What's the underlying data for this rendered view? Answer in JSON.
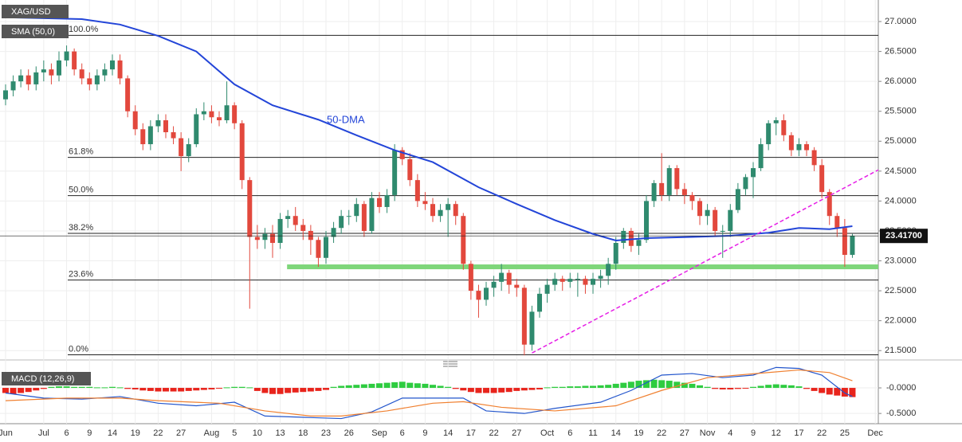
{
  "chart_data": [
    {
      "type": "candlestick",
      "title": "XAG/USD",
      "xlim": [
        -0.73,
        114.4
      ],
      "ylim": [
        21.37,
        27.36
      ],
      "xticks": [
        {
          "value": 0,
          "label": "Jun"
        },
        {
          "value": 5,
          "label": "Jul"
        },
        {
          "value": 8,
          "label": "6"
        },
        {
          "value": 11,
          "label": "9"
        },
        {
          "value": 14,
          "label": "14"
        },
        {
          "value": 17,
          "label": "19"
        },
        {
          "value": 20,
          "label": "22"
        },
        {
          "value": 23,
          "label": "27"
        },
        {
          "value": 27,
          "label": "Aug"
        },
        {
          "value": 30,
          "label": "5"
        },
        {
          "value": 33,
          "label": "10"
        },
        {
          "value": 36,
          "label": "13"
        },
        {
          "value": 39,
          "label": "18"
        },
        {
          "value": 42,
          "label": "23"
        },
        {
          "value": 45,
          "label": "26"
        },
        {
          "value": 49,
          "label": "Sep"
        },
        {
          "value": 52,
          "label": "6"
        },
        {
          "value": 55,
          "label": "9"
        },
        {
          "value": 58,
          "label": "14"
        },
        {
          "value": 61,
          "label": "17"
        },
        {
          "value": 64,
          "label": "22"
        },
        {
          "value": 67,
          "label": "27"
        },
        {
          "value": 71,
          "label": "Oct"
        },
        {
          "value": 74,
          "label": "6"
        },
        {
          "value": 77,
          "label": "11"
        },
        {
          "value": 80,
          "label": "14"
        },
        {
          "value": 83,
          "label": "19"
        },
        {
          "value": 86,
          "label": "22"
        },
        {
          "value": 89,
          "label": "27"
        },
        {
          "value": 92,
          "label": "Nov"
        },
        {
          "value": 95,
          "label": "4"
        },
        {
          "value": 98,
          "label": "9"
        },
        {
          "value": 101,
          "label": "12"
        },
        {
          "value": 104,
          "label": "17"
        },
        {
          "value": 107,
          "label": "22"
        },
        {
          "value": 110,
          "label": "25"
        },
        {
          "value": 114,
          "label": "Dec"
        }
      ],
      "yticks": [
        {
          "value": 27,
          "label": "27.0000"
        },
        {
          "value": 26.5,
          "label": "26.5000"
        },
        {
          "value": 26,
          "label": "26.0000"
        },
        {
          "value": 25.5,
          "label": "25.5000"
        },
        {
          "value": 25,
          "label": "25.0000"
        },
        {
          "value": 24.5,
          "label": "24.5000"
        },
        {
          "value": 24,
          "label": "24.0000"
        },
        {
          "value": 23.5,
          "label": "23.5000"
        },
        {
          "value": 23,
          "label": "23.0000"
        },
        {
          "value": 22.5,
          "label": "22.5000"
        },
        {
          "value": 22,
          "label": "22.0000"
        },
        {
          "value": 21.5,
          "label": "21.5000"
        }
      ],
      "up_color": "#2f8a6e",
      "down_color": "#e2483d",
      "candles": [
        [
          25.7,
          25.95,
          25.6,
          25.85
        ],
        [
          25.85,
          26.1,
          25.75,
          26.0
        ],
        [
          26.0,
          26.2,
          25.9,
          26.1
        ],
        [
          26.1,
          26.2,
          25.85,
          25.95
        ],
        [
          25.95,
          26.25,
          25.85,
          26.15
        ],
        [
          26.15,
          26.35,
          26.0,
          26.2
        ],
        [
          26.2,
          26.3,
          25.95,
          26.1
        ],
        [
          26.1,
          26.5,
          26.0,
          26.35
        ],
        [
          26.35,
          26.6,
          26.25,
          26.5
        ],
        [
          26.5,
          26.55,
          26.1,
          26.2
        ],
        [
          26.2,
          26.3,
          25.95,
          26.05
        ],
        [
          26.05,
          26.15,
          25.85,
          25.95
        ],
        [
          25.95,
          26.2,
          25.85,
          26.1
        ],
        [
          26.1,
          26.3,
          26.0,
          26.2
        ],
        [
          26.2,
          26.45,
          26.1,
          26.35
        ],
        [
          26.35,
          26.45,
          25.95,
          26.05
        ],
        [
          26.05,
          26.1,
          25.4,
          25.5
        ],
        [
          25.5,
          25.6,
          25.1,
          25.2
        ],
        [
          25.2,
          25.3,
          24.85,
          24.95
        ],
        [
          24.95,
          25.35,
          24.85,
          25.25
        ],
        [
          25.25,
          25.45,
          25.15,
          25.35
        ],
        [
          25.35,
          25.45,
          25.05,
          25.15
        ],
        [
          25.15,
          25.25,
          24.95,
          25.05
        ],
        [
          25.05,
          25.15,
          24.5,
          24.75
        ],
        [
          24.75,
          25.05,
          24.65,
          24.95
        ],
        [
          24.95,
          25.55,
          24.9,
          25.45
        ],
        [
          25.45,
          25.65,
          25.35,
          25.5
        ],
        [
          25.5,
          25.6,
          25.3,
          25.4
        ],
        [
          25.4,
          25.5,
          25.25,
          25.35
        ],
        [
          25.35,
          26.0,
          25.3,
          25.6
        ],
        [
          25.6,
          25.65,
          25.2,
          25.3
        ],
        [
          25.3,
          25.35,
          24.2,
          24.35
        ],
        [
          24.35,
          24.4,
          22.2,
          23.4
        ],
        [
          23.4,
          23.6,
          23.2,
          23.35
        ],
        [
          23.35,
          23.55,
          23.2,
          23.45
        ],
        [
          23.45,
          23.6,
          23.05,
          23.3
        ],
        [
          23.3,
          23.8,
          23.2,
          23.7
        ],
        [
          23.7,
          23.85,
          23.55,
          23.75
        ],
        [
          23.75,
          23.9,
          23.5,
          23.6
        ],
        [
          23.6,
          23.7,
          23.35,
          23.5
        ],
        [
          23.5,
          23.6,
          23.1,
          23.35
        ],
        [
          23.35,
          23.4,
          22.9,
          23.05
        ],
        [
          23.05,
          23.5,
          22.95,
          23.4
        ],
        [
          23.4,
          23.65,
          23.3,
          23.55
        ],
        [
          23.55,
          23.85,
          23.45,
          23.75
        ],
        [
          23.75,
          23.85,
          23.6,
          23.75
        ],
        [
          23.75,
          24.05,
          23.65,
          23.95
        ],
        [
          23.95,
          24.0,
          23.4,
          23.5
        ],
        [
          23.5,
          24.15,
          23.45,
          24.05
        ],
        [
          24.05,
          24.15,
          23.8,
          23.9
        ],
        [
          23.9,
          24.2,
          23.8,
          24.1
        ],
        [
          24.1,
          24.95,
          24.0,
          24.85
        ],
        [
          24.85,
          24.9,
          24.6,
          24.7
        ],
        [
          24.7,
          24.8,
          24.25,
          24.35
        ],
        [
          24.35,
          24.45,
          23.9,
          24.0
        ],
        [
          24.0,
          24.15,
          23.85,
          23.95
        ],
        [
          23.95,
          24.05,
          23.65,
          23.75
        ],
        [
          23.75,
          23.95,
          23.65,
          23.85
        ],
        [
          23.85,
          24.05,
          23.4,
          23.95
        ],
        [
          23.95,
          24.0,
          23.6,
          23.75
        ],
        [
          23.75,
          23.8,
          22.85,
          22.95
        ],
        [
          22.95,
          23.0,
          22.35,
          22.5
        ],
        [
          22.5,
          22.6,
          22.05,
          22.35
        ],
        [
          22.35,
          22.65,
          22.25,
          22.55
        ],
        [
          22.55,
          22.75,
          22.4,
          22.65
        ],
        [
          22.65,
          22.95,
          22.5,
          22.8
        ],
        [
          22.8,
          22.85,
          22.45,
          22.6
        ],
        [
          22.6,
          22.7,
          22.4,
          22.55
        ],
        [
          22.55,
          22.6,
          21.42,
          21.6
        ],
        [
          21.6,
          22.25,
          21.5,
          22.15
        ],
        [
          22.15,
          22.55,
          22.05,
          22.45
        ],
        [
          22.45,
          22.7,
          22.3,
          22.6
        ],
        [
          22.6,
          22.8,
          22.5,
          22.7
        ],
        [
          22.7,
          22.75,
          22.5,
          22.65
        ],
        [
          22.65,
          22.8,
          22.55,
          22.7
        ],
        [
          22.7,
          22.8,
          22.4,
          22.7
        ],
        [
          22.7,
          22.75,
          22.45,
          22.6
        ],
        [
          22.6,
          22.8,
          22.45,
          22.7
        ],
        [
          22.7,
          22.85,
          22.55,
          22.75
        ],
        [
          22.75,
          23.05,
          22.6,
          22.95
        ],
        [
          22.95,
          23.4,
          22.85,
          23.3
        ],
        [
          23.3,
          23.55,
          23.2,
          23.5
        ],
        [
          23.5,
          23.55,
          23.15,
          23.25
        ],
        [
          23.25,
          23.45,
          23.1,
          23.35
        ],
        [
          23.35,
          24.1,
          23.3,
          24.0
        ],
        [
          24.0,
          24.35,
          23.9,
          24.3
        ],
        [
          24.3,
          24.8,
          24.0,
          24.1
        ],
        [
          24.1,
          24.6,
          24.0,
          24.55
        ],
        [
          24.55,
          24.6,
          24.1,
          24.2
        ],
        [
          24.2,
          24.3,
          23.95,
          24.1
        ],
        [
          24.1,
          24.15,
          23.85,
          24.0
        ],
        [
          24.0,
          24.05,
          23.6,
          23.75
        ],
        [
          23.75,
          23.95,
          23.6,
          23.85
        ],
        [
          23.85,
          23.9,
          23.4,
          23.5
        ],
        [
          23.5,
          23.6,
          23.05,
          23.5
        ],
        [
          23.5,
          23.95,
          23.4,
          23.85
        ],
        [
          23.85,
          24.3,
          23.8,
          24.2
        ],
        [
          24.2,
          24.45,
          24.1,
          24.4
        ],
        [
          24.4,
          24.65,
          24.05,
          24.55
        ],
        [
          24.55,
          25.05,
          24.5,
          24.95
        ],
        [
          24.95,
          25.35,
          24.85,
          25.3
        ],
        [
          25.3,
          25.4,
          25.1,
          25.35
        ],
        [
          25.35,
          25.45,
          25.0,
          25.1
        ],
        [
          25.1,
          25.15,
          24.75,
          24.85
        ],
        [
          24.85,
          25.05,
          24.75,
          24.95
        ],
        [
          24.95,
          25.0,
          24.75,
          24.85
        ],
        [
          24.85,
          24.9,
          24.5,
          24.6
        ],
        [
          24.6,
          24.7,
          24.05,
          24.15
        ],
        [
          24.15,
          24.2,
          23.6,
          23.75
        ],
        [
          23.75,
          23.8,
          23.4,
          23.55
        ],
        [
          23.55,
          23.7,
          22.9,
          23.1
        ],
        [
          23.1,
          23.45,
          23.05,
          23.42
        ]
      ],
      "series": [
        {
          "name": "SMA (50,0)",
          "color": "#2345d8",
          "x": [
            0,
            10,
            15,
            20,
            25,
            30,
            35,
            41,
            46,
            51,
            56,
            62,
            67,
            72,
            77,
            80,
            84,
            90,
            95,
            100,
            104,
            108,
            111
          ],
          "values": [
            27.07,
            27.04,
            26.95,
            26.76,
            26.5,
            25.95,
            25.6,
            25.36,
            25.1,
            24.85,
            24.65,
            24.23,
            23.95,
            23.68,
            23.45,
            23.34,
            23.38,
            23.4,
            23.42,
            23.47,
            23.55,
            23.53,
            23.58
          ]
        }
      ],
      "annotation": "50-DMA",
      "levels": [
        {
          "value": 26.77,
          "label": "100.0%"
        },
        {
          "value": 24.73,
          "label": "61.8%"
        },
        {
          "value": 24.09,
          "label": "50.0%"
        },
        {
          "value": 23.46,
          "label": "38.2%"
        },
        {
          "value": 22.68,
          "label": "23.6%"
        },
        {
          "value": 21.43,
          "label": "0.0%"
        }
      ],
      "support": {
        "value": 22.9,
        "x": [
          36.9,
          114.4
        ],
        "color": "#7ed67a"
      },
      "trendline": {
        "x": [
          69,
          114.4
        ],
        "values": [
          21.46,
          24.52
        ],
        "color": "#e61ee6"
      },
      "last_price": {
        "value": 23.417,
        "label": "23.41700"
      }
    },
    {
      "type": "macd",
      "title": "MACD (12,26,9)",
      "ylim": [
        -0.7,
        0.39
      ],
      "yticks": [
        {
          "value": 0,
          "label": "-0.0000"
        },
        {
          "value": -0.5,
          "label": "-0.5000"
        }
      ],
      "histogram": {
        "up_color": "#2ecc40",
        "down_color": "#e8241c",
        "values": [
          -0.1,
          -0.12,
          -0.1,
          -0.08,
          -0.05,
          -0.02,
          0.02,
          0.03,
          0.03,
          0.02,
          0.02,
          0.02,
          0.01,
          0.01,
          0.02,
          0.01,
          -0.02,
          -0.03,
          -0.05,
          -0.06,
          -0.07,
          -0.07,
          -0.07,
          -0.07,
          -0.06,
          -0.05,
          -0.04,
          -0.03,
          -0.01,
          0.01,
          0.02,
          0.02,
          0.01,
          -0.06,
          -0.1,
          -0.12,
          -0.12,
          -0.1,
          -0.09,
          -0.08,
          -0.07,
          -0.06,
          -0.04,
          0.02,
          0.04,
          0.05,
          0.06,
          0.07,
          0.08,
          0.09,
          0.1,
          0.11,
          0.12,
          0.1,
          0.09,
          0.08,
          0.06,
          0.04,
          0.02,
          -0.02,
          -0.05,
          -0.08,
          -0.1,
          -0.1,
          -0.1,
          -0.09,
          -0.08,
          -0.06,
          -0.05,
          -0.04,
          -0.03,
          0.01,
          0.02,
          0.02,
          0.03,
          0.03,
          0.04,
          0.04,
          0.05,
          0.06,
          0.08,
          0.1,
          0.12,
          0.14,
          0.15,
          0.16,
          0.15,
          0.14,
          0.12,
          0.1,
          0.08,
          0.05,
          0.02,
          -0.02,
          -0.03,
          -0.03,
          -0.02,
          -0.01,
          0.02,
          0.04,
          0.06,
          0.07,
          0.06,
          0.05,
          0.03,
          -0.02,
          -0.06,
          -0.1,
          -0.13,
          -0.15,
          -0.17,
          -0.18
        ]
      },
      "series": [
        {
          "color": "#2255cc",
          "x": [
            0,
            5,
            10,
            15,
            20,
            25,
            30,
            34,
            40,
            44,
            48,
            52,
            56,
            60,
            63,
            68,
            72,
            78,
            82,
            86,
            90,
            94,
            98,
            101,
            104,
            107,
            110,
            111
          ],
          "values": [
            -0.1,
            -0.2,
            -0.22,
            -0.17,
            -0.3,
            -0.35,
            -0.28,
            -0.55,
            -0.58,
            -0.6,
            -0.47,
            -0.2,
            -0.2,
            -0.2,
            -0.45,
            -0.5,
            -0.4,
            -0.28,
            -0.05,
            0.25,
            0.28,
            0.2,
            0.25,
            0.4,
            0.38,
            0.25,
            -0.1,
            -0.17
          ]
        },
        {
          "color": "#f08030",
          "x": [
            0,
            8,
            15,
            20,
            28,
            34,
            40,
            44,
            50,
            56,
            60,
            65,
            72,
            80,
            86,
            92,
            100,
            104,
            108,
            111
          ],
          "values": [
            -0.25,
            -0.2,
            -0.2,
            -0.25,
            -0.3,
            -0.45,
            -0.55,
            -0.55,
            -0.45,
            -0.3,
            -0.27,
            -0.38,
            -0.45,
            -0.35,
            -0.05,
            0.2,
            0.3,
            0.35,
            0.3,
            0.14
          ]
        }
      ]
    }
  ]
}
